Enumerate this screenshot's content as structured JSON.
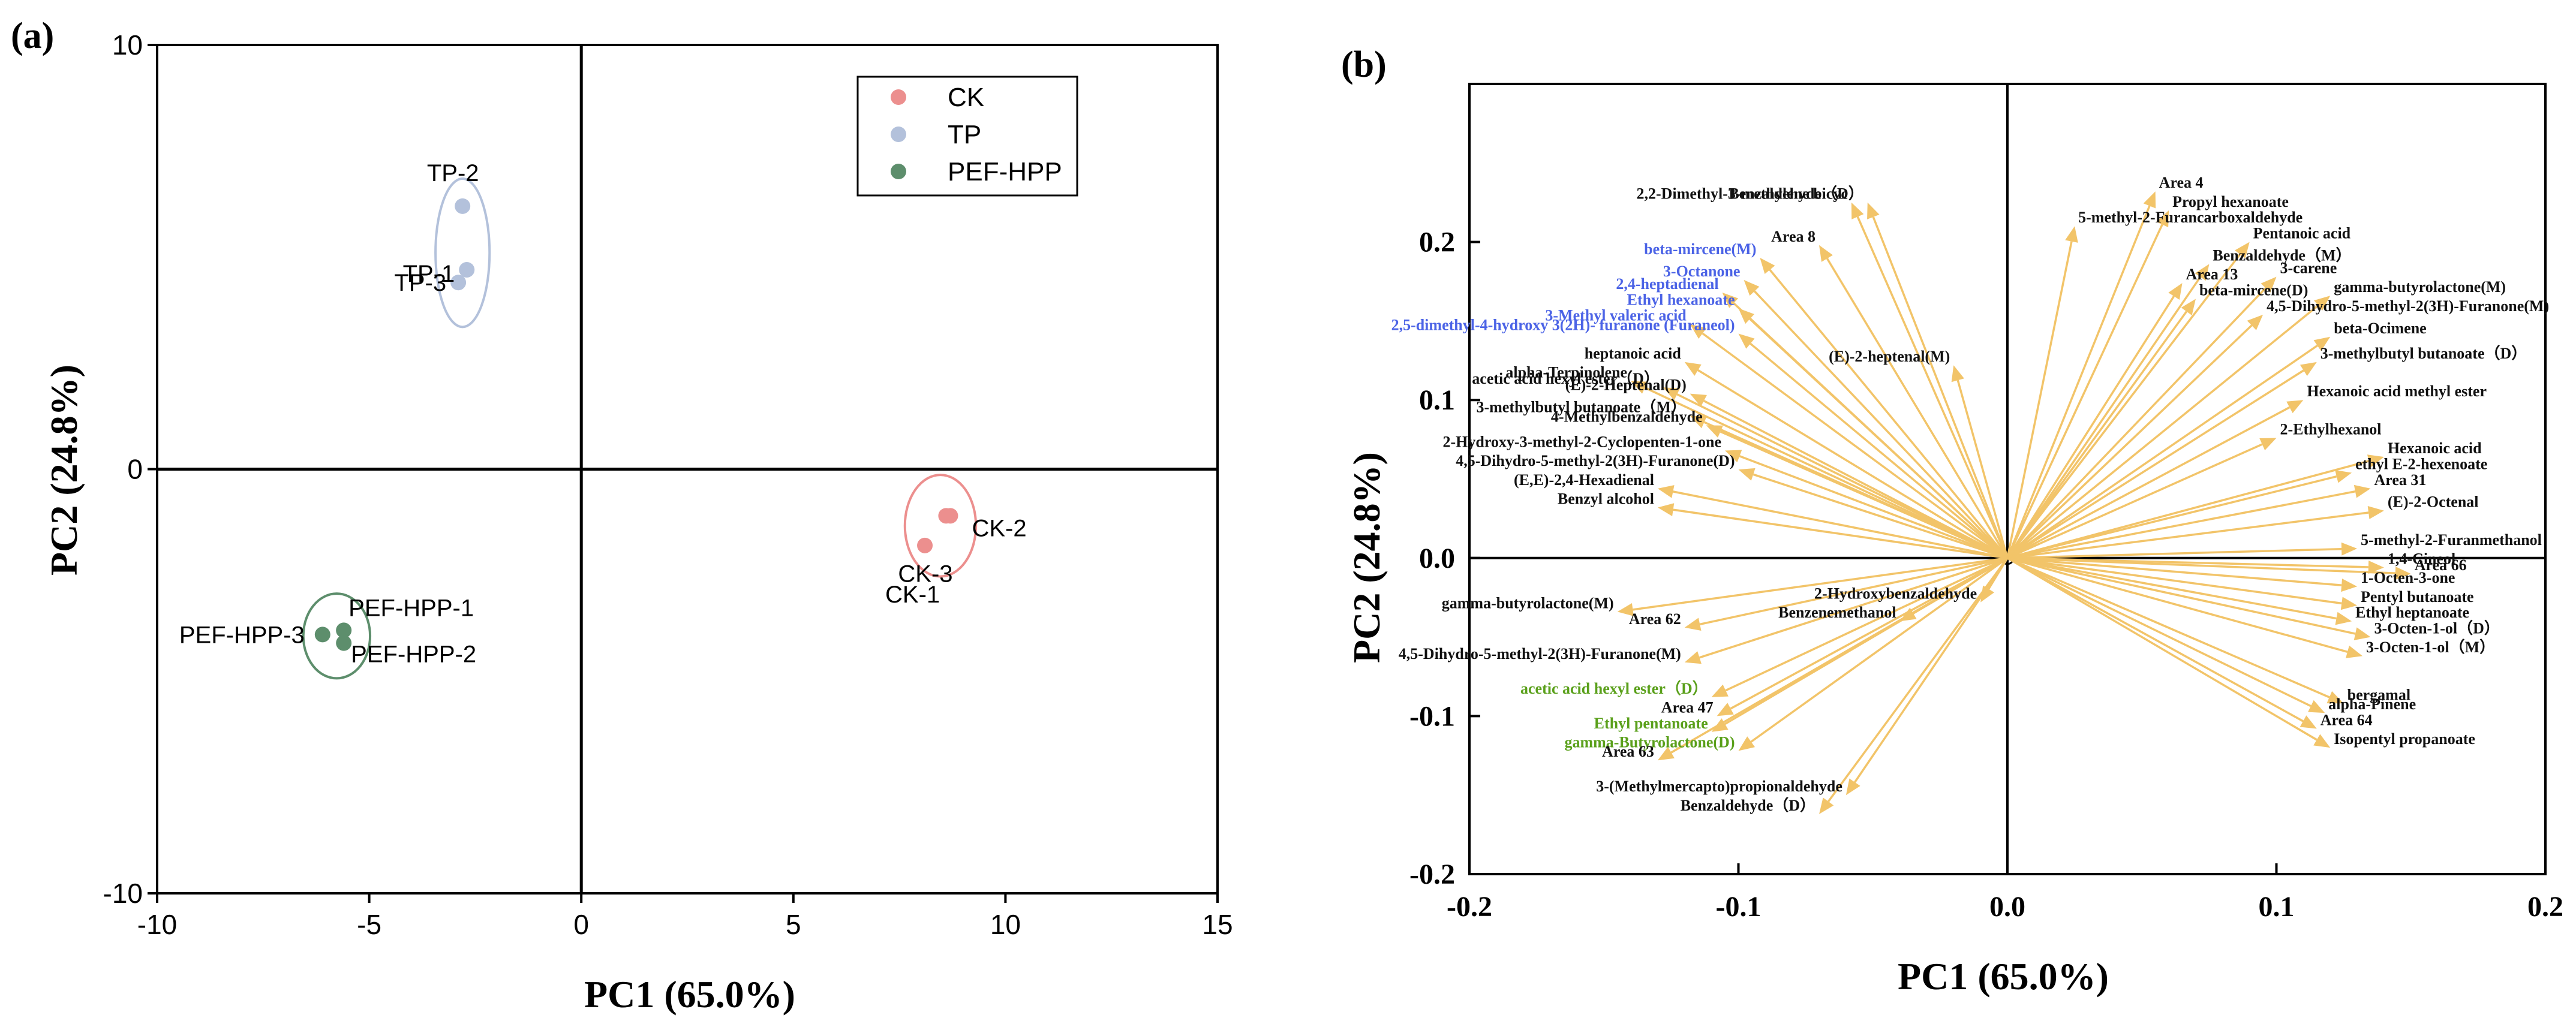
{
  "colors": {
    "CK": "#ec8f8e",
    "TP": "#b3c1db",
    "PEF-HPP": "#5d8e6c",
    "arrow": "#f2c469",
    "label_blue": "#4b63e6",
    "label_green": "#5aa01b",
    "label_black": "#111111"
  },
  "panel_a": {
    "panel_label": "(a)",
    "xlabel": "PC1 (65.0%)",
    "ylabel": "PC2 (24.8%)"
  },
  "panel_b": {
    "panel_label": "(b)",
    "xlabel": "PC1 (65.0%)",
    "ylabel": "PC2 (24.8%)"
  },
  "chart_data": [
    {
      "type": "scatter",
      "panel": "(a)",
      "xlabel": "PC1 (65.0%)",
      "ylabel": "PC2 (24.8%)",
      "xlim": [
        -10,
        15
      ],
      "ylim": [
        -10,
        10
      ],
      "xticks": [
        "-10",
        "-5",
        "0",
        "5",
        "10",
        "15"
      ],
      "yticks": [
        "10",
        "0",
        "-10"
      ],
      "legend_position": "top-right",
      "legend": [
        "CK",
        "TP",
        "PEF-HPP"
      ],
      "series": [
        {
          "name": "CK",
          "points": [
            {
              "label": "CK-2",
              "x": 8.7,
              "y": -1.1
            },
            {
              "label": "CK-3",
              "x": 8.6,
              "y": -1.1
            },
            {
              "label": "CK-1",
              "x": 8.1,
              "y": -1.8
            }
          ]
        },
        {
          "name": "TP",
          "points": [
            {
              "label": "TP-2",
              "x": -2.8,
              "y": 6.2
            },
            {
              "label": "TP-1",
              "x": -2.7,
              "y": 4.7
            },
            {
              "label": "TP-3",
              "x": -2.9,
              "y": 4.4
            }
          ]
        },
        {
          "name": "PEF-HPP",
          "points": [
            {
              "label": "PEF-HPP-1",
              "x": -5.6,
              "y": -3.8
            },
            {
              "label": "PEF-HPP-2",
              "x": -5.6,
              "y": -4.1
            },
            {
              "label": "PEF-HPP-3",
              "x": -6.1,
              "y": -3.9
            }
          ]
        }
      ]
    },
    {
      "type": "scatter",
      "subtype": "loadings",
      "panel": "(b)",
      "xlabel": "PC1 (65.0%)",
      "ylabel": "PC2 (24.8%)",
      "xlim": [
        -0.2,
        0.2
      ],
      "ylim": [
        -0.2,
        0.3
      ],
      "xticks": [
        "-0.2",
        "-0.1",
        "0.0",
        "0.1",
        "0.2"
      ],
      "yticks": [
        "0.2",
        "0.1",
        "0.0",
        "-0.1",
        "-0.2"
      ],
      "loadings": [
        {
          "label": "Benzaldehyde（D）",
          "x": -0.052,
          "y": 0.225,
          "color": "black"
        },
        {
          "label": "2,2-Dimethyl-3-methylene bicyc",
          "x": -0.058,
          "y": 0.225,
          "color": "black"
        },
        {
          "label": "Area 8",
          "x": -0.07,
          "y": 0.198,
          "color": "black"
        },
        {
          "label": "beta-mircene(M)",
          "x": -0.092,
          "y": 0.19,
          "color": "blue"
        },
        {
          "label": "3-Octanone",
          "x": -0.098,
          "y": 0.176,
          "color": "blue"
        },
        {
          "label": "2,4-heptadienal",
          "x": -0.106,
          "y": 0.168,
          "color": "blue"
        },
        {
          "label": "Ethyl hexanoate",
          "x": -0.1,
          "y": 0.158,
          "color": "blue"
        },
        {
          "label": "3-Methyl valeric acid",
          "x": -0.118,
          "y": 0.148,
          "color": "blue"
        },
        {
          "label": "2,5-dimethyl-4-hydroxy 3(2H)- furanone (Furaneol)",
          "x": -0.1,
          "y": 0.142,
          "color": "blue"
        },
        {
          "label": "(E)-2-heptenal(M)",
          "x": -0.02,
          "y": 0.122,
          "color": "black"
        },
        {
          "label": "heptanoic acid",
          "x": -0.12,
          "y": 0.124,
          "color": "black"
        },
        {
          "label": "alpha-Terpinolene",
          "x": -0.14,
          "y": 0.112,
          "color": "black"
        },
        {
          "label": "acetic acid hexyl ester（D）",
          "x": -0.128,
          "y": 0.108,
          "color": "black"
        },
        {
          "label": "(E)-2-Heptenal(D)",
          "x": -0.118,
          "y": 0.104,
          "color": "black"
        },
        {
          "label": "3-methylbutyl butanoate（M）",
          "x": -0.118,
          "y": 0.09,
          "color": "black"
        },
        {
          "label": "4-Methylbenzaldehyde",
          "x": -0.112,
          "y": 0.084,
          "color": "black"
        },
        {
          "label": "2-Hydroxy-3-methyl-2-Cyclopenten-1-one",
          "x": -0.105,
          "y": 0.068,
          "color": "black"
        },
        {
          "label": "4,5-Dihydro-5-methyl-2(3H)-Furanone(D)",
          "x": -0.1,
          "y": 0.056,
          "color": "black"
        },
        {
          "label": "(E,E)-2,4-Hexadienal",
          "x": -0.13,
          "y": 0.044,
          "color": "black"
        },
        {
          "label": "Benzyl alcohol",
          "x": -0.13,
          "y": 0.032,
          "color": "black"
        },
        {
          "label": "gamma-butyrolactone(M)",
          "x": -0.145,
          "y": -0.034,
          "color": "black"
        },
        {
          "label": "Area 62",
          "x": -0.12,
          "y": -0.044,
          "color": "black"
        },
        {
          "label": "2-Hydroxybenzaldehyde",
          "x": -0.01,
          "y": -0.028,
          "color": "black"
        },
        {
          "label": "Benzenemethanol",
          "x": -0.04,
          "y": -0.04,
          "color": "black"
        },
        {
          "label": "4,5-Dihydro-5-methyl-2(3H)-Furanone(M)",
          "x": -0.12,
          "y": -0.066,
          "color": "black"
        },
        {
          "label": "acetic acid hexyl ester（D）",
          "x": -0.11,
          "y": -0.088,
          "color": "green"
        },
        {
          "label": "Area 47",
          "x": -0.108,
          "y": -0.1,
          "color": "black"
        },
        {
          "label": "Ethyl pentanoate",
          "x": -0.11,
          "y": -0.11,
          "color": "green"
        },
        {
          "label": "gamma-Butyrolactone(D)",
          "x": -0.1,
          "y": -0.122,
          "color": "green"
        },
        {
          "label": "Area 63",
          "x": -0.13,
          "y": -0.128,
          "color": "black"
        },
        {
          "label": "3-(Methylmercapto)propionaldehyde",
          "x": -0.06,
          "y": -0.15,
          "color": "black"
        },
        {
          "label": "Benzaldehyde（D）",
          "x": -0.07,
          "y": -0.162,
          "color": "black"
        },
        {
          "label": "Area 4",
          "x": 0.055,
          "y": 0.232,
          "color": "black"
        },
        {
          "label": "Propyl hexanoate",
          "x": 0.06,
          "y": 0.22,
          "color": "black"
        },
        {
          "label": "5-methyl-2-Furancarboxaldehyde",
          "x": 0.025,
          "y": 0.21,
          "color": "black"
        },
        {
          "label": "Pentanoic acid",
          "x": 0.09,
          "y": 0.2,
          "color": "black"
        },
        {
          "label": "Benzaldehyde（M）",
          "x": 0.075,
          "y": 0.186,
          "color": "black"
        },
        {
          "label": "3-carene",
          "x": 0.1,
          "y": 0.178,
          "color": "black"
        },
        {
          "label": "Area 13",
          "x": 0.065,
          "y": 0.174,
          "color": "black"
        },
        {
          "label": "gamma-butyrolactone(M)",
          "x": 0.12,
          "y": 0.166,
          "color": "black"
        },
        {
          "label": "beta-mircene(D)",
          "x": 0.07,
          "y": 0.164,
          "color": "black"
        },
        {
          "label": "4,5-Dihydro-5-methyl-2(3H)-Furanone(M)",
          "x": 0.095,
          "y": 0.154,
          "color": "black"
        },
        {
          "label": "beta-Ocimene",
          "x": 0.12,
          "y": 0.14,
          "color": "black"
        },
        {
          "label": "3-methylbutyl butanoate（D）",
          "x": 0.115,
          "y": 0.124,
          "color": "black"
        },
        {
          "label": "Hexanoic acid methyl ester",
          "x": 0.11,
          "y": 0.1,
          "color": "black"
        },
        {
          "label": "2-Ethylhexanol",
          "x": 0.1,
          "y": 0.076,
          "color": "black"
        },
        {
          "label": "Hexanoic acid",
          "x": 0.14,
          "y": 0.064,
          "color": "black"
        },
        {
          "label": "ethyl E-2-hexenoate",
          "x": 0.128,
          "y": 0.054,
          "color": "black"
        },
        {
          "label": "Area 31",
          "x": 0.135,
          "y": 0.044,
          "color": "black"
        },
        {
          "label": "(E)-2-Octenal",
          "x": 0.14,
          "y": 0.03,
          "color": "black"
        },
        {
          "label": "5-methyl-2-Furanmethanol",
          "x": 0.13,
          "y": 0.006,
          "color": "black"
        },
        {
          "label": "1,4-Cineol",
          "x": 0.14,
          "y": -0.006,
          "color": "black"
        },
        {
          "label": "Area 66",
          "x": 0.15,
          "y": -0.01,
          "color": "black"
        },
        {
          "label": "1-Octen-3-one",
          "x": 0.13,
          "y": -0.018,
          "color": "black"
        },
        {
          "label": "Pentyl butanoate",
          "x": 0.13,
          "y": -0.03,
          "color": "black"
        },
        {
          "label": "Ethyl heptanoate",
          "x": 0.128,
          "y": -0.04,
          "color": "black"
        },
        {
          "label": "3-Octen-1-ol（D）",
          "x": 0.135,
          "y": -0.05,
          "color": "black"
        },
        {
          "label": "3-Octen-1-ol（M）",
          "x": 0.132,
          "y": -0.062,
          "color": "black"
        },
        {
          "label": "bergamal",
          "x": 0.125,
          "y": -0.092,
          "color": "black"
        },
        {
          "label": "alpha-Pinene",
          "x": 0.118,
          "y": -0.098,
          "color": "black"
        },
        {
          "label": "Area 64",
          "x": 0.115,
          "y": -0.108,
          "color": "black"
        },
        {
          "label": "Isopentyl propanoate",
          "x": 0.12,
          "y": -0.12,
          "color": "black"
        }
      ]
    }
  ]
}
